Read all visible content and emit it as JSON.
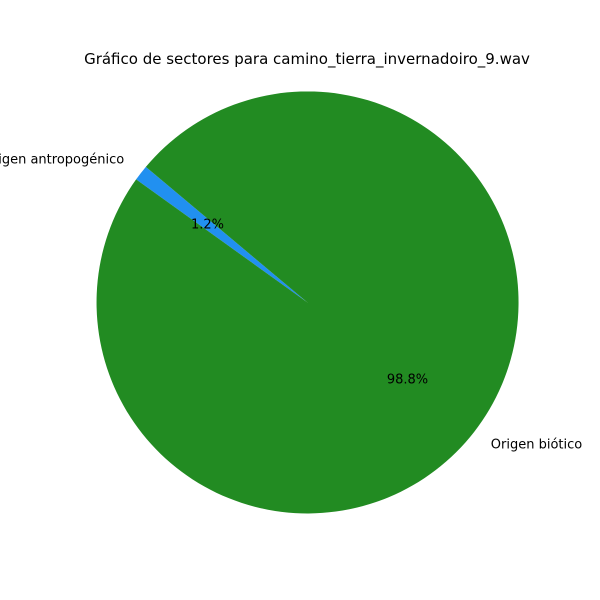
{
  "chart_data": {
    "type": "pie",
    "title": "Gráfico de sectores para camino_tierra_invernadoiro_9.wav",
    "slices": [
      {
        "label": "Origen antropogénico",
        "value": 1.2,
        "percent_label": "1.2%",
        "color": "#2190f0"
      },
      {
        "label": "Origen biótico",
        "value": 98.8,
        "percent_label": "98.8%",
        "color": "#228b22"
      }
    ],
    "start_angle_deg": 140,
    "direction": "counterclockwise",
    "legend": "none"
  }
}
